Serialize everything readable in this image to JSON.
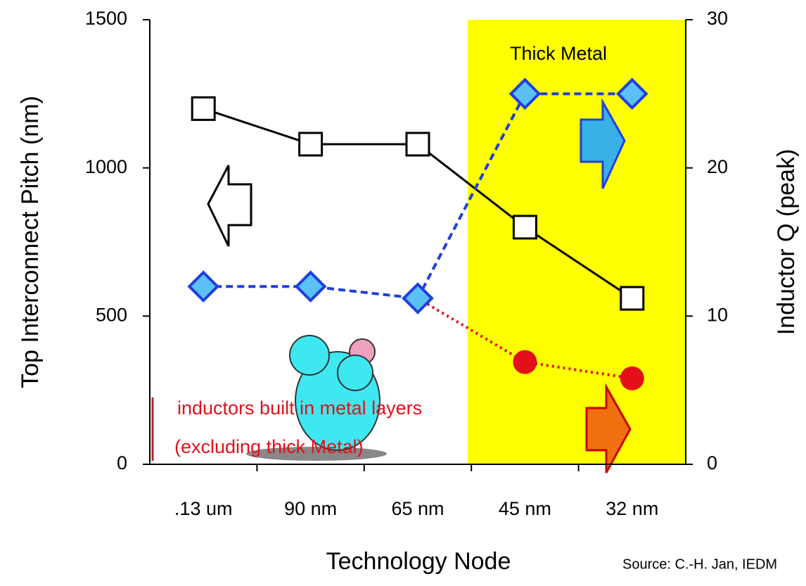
{
  "chart_data": {
    "type": "line",
    "xlabel": "Technology Node",
    "ylabel": "Top Interconnect Pitch (nm)",
    "y2label": "Inductor Q (peak)",
    "categories": [
      ".13 um",
      "90 nm",
      "65 nm",
      "45 nm",
      "32 nm"
    ],
    "ylim": [
      0,
      1500
    ],
    "yticks": [
      0,
      500,
      1000,
      1500
    ],
    "y2lim": [
      0,
      30
    ],
    "y2ticks": [
      0,
      10,
      20,
      30
    ],
    "series": [
      {
        "color": "#000000",
        "marker": "square",
        "linestyle": "solid",
        "values": [
          1200,
          1080,
          1080,
          800,
          560
        ]
      },
      {
        "color": "#1f3fe0",
        "marker": "diamond",
        "linestyle": "dashed",
        "axis": "y2",
        "values": [
          12,
          12,
          11.2,
          25,
          25
        ]
      },
      {
        "color": "#e3101a",
        "marker": "circle",
        "linestyle": "dotted",
        "axis": "y2",
        "values": [
          null,
          null,
          11.2,
          6.9,
          5.8
        ]
      }
    ],
    "annotations": [
      "Thick Metal",
      "inductors built in metal layers",
      "(excluding thick Metal)",
      "Source: C.-H. Jan, IEDM"
    ]
  }
}
